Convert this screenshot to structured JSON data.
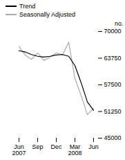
{
  "chart_data": {
    "type": "line",
    "categories": [
      "Jun\n2007",
      null,
      null,
      "Sep",
      null,
      null,
      "Dec",
      null,
      null,
      "Mar\n2008",
      null,
      null,
      "Jun"
    ],
    "series": [
      {
        "name": "Seasonally Adjusted",
        "color": "#aaaaaa",
        "values": [
          66500,
          64500,
          63500,
          65000,
          63200,
          64000,
          65000,
          64500,
          67500,
          59000,
          55000,
          50500,
          52000
        ]
      },
      {
        "name": "Trend",
        "color": "#000000",
        "values": [
          65500,
          65200,
          64600,
          64200,
          64000,
          64200,
          64500,
          64600,
          64200,
          62000,
          58000,
          53500,
          51500
        ]
      }
    ],
    "ylabel": "no.",
    "ylim": [
      45000,
      70000
    ],
    "yticks": [
      45000,
      51250,
      57500,
      63750,
      70000
    ],
    "legend": "upper left"
  }
}
